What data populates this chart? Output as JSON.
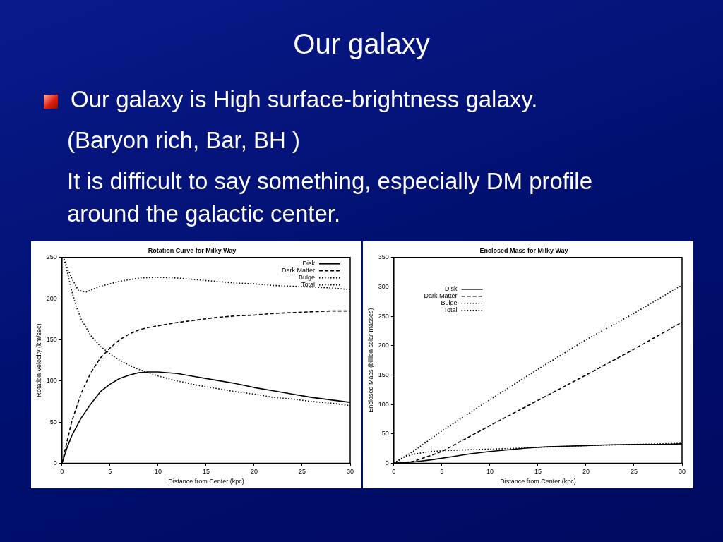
{
  "chart_data": [
    {
      "type": "other",
      "title": "Our galaxy",
      "annotations": [
        "Our galaxy is High surface-brightness galaxy.",
        "(Baryon rich, Bar, BH )",
        "It is difficult to say something, especially DM profile around the galactic center."
      ]
    },
    {
      "type": "line",
      "title": "Rotation Curve for Milky Way",
      "xlabel": "Distance from Center (kpc)",
      "ylabel": "Rotation Velocity (km/sec)",
      "xlim": [
        0,
        30
      ],
      "ylim": [
        0,
        250
      ],
      "xticks": [
        0,
        5,
        10,
        15,
        20,
        25,
        30
      ],
      "yticks": [
        0,
        50,
        100,
        150,
        200,
        250
      ],
      "grid": false,
      "legend": "top right",
      "marker": "none",
      "series": [
        {
          "name": "Disk",
          "color": "#000000",
          "line_style": "solid",
          "x": [
            0,
            0.5,
            1,
            2,
            3,
            4,
            5,
            6,
            7,
            8,
            9,
            10,
            12,
            14,
            16,
            18,
            20,
            22,
            24,
            26,
            28,
            30
          ],
          "values": [
            0,
            18,
            33,
            55,
            72,
            87,
            96,
            103,
            107,
            110,
            111,
            111,
            109,
            105,
            101,
            97,
            92,
            88,
            84,
            80,
            77,
            74
          ]
        },
        {
          "name": "Dark Matter",
          "color": "#000000",
          "line_style": "dashed",
          "x": [
            0,
            0.5,
            1,
            2,
            3,
            4,
            5,
            6,
            7,
            8,
            9,
            10,
            12,
            14,
            16,
            18,
            20,
            22,
            24,
            26,
            28,
            30
          ],
          "values": [
            0,
            25,
            50,
            85,
            110,
            128,
            140,
            150,
            157,
            162,
            165,
            167,
            171,
            174,
            177,
            179,
            180,
            182,
            183,
            184,
            185,
            185
          ]
        },
        {
          "name": "Bulge",
          "color": "#000000",
          "line_style": "dotted",
          "x": [
            0.2,
            0.5,
            1,
            1.5,
            2,
            3,
            4,
            5,
            6,
            7,
            8,
            9,
            10,
            12,
            14,
            16,
            18,
            20,
            22,
            24,
            26,
            28,
            30
          ],
          "values": [
            248,
            235,
            210,
            190,
            175,
            155,
            142,
            133,
            125,
            119,
            114,
            110,
            106,
            100,
            95,
            91,
            87,
            84,
            80,
            78,
            75,
            73,
            70
          ]
        },
        {
          "name": "Total",
          "color": "#000000",
          "line_style": "dotted",
          "x": [
            0.2,
            1,
            1.7,
            2.5,
            4,
            5,
            6,
            8,
            10,
            12,
            14,
            16,
            18,
            20,
            22,
            24,
            26,
            28,
            30
          ],
          "values": [
            248,
            225,
            210,
            208,
            215,
            218,
            221,
            225,
            226,
            225,
            223,
            221,
            219,
            218,
            216,
            215,
            214,
            213,
            211
          ]
        }
      ]
    },
    {
      "type": "line",
      "title": "Enclosed Mass for Milky Way",
      "xlabel": "Distance from Center (kpc)",
      "ylabel": "Enclosed Mass (billion solar masses)",
      "xlim": [
        0,
        30
      ],
      "ylim": [
        0,
        350
      ],
      "xticks": [
        0,
        5,
        10,
        15,
        20,
        25,
        30
      ],
      "yticks": [
        0,
        50,
        100,
        150,
        200,
        250,
        300,
        350
      ],
      "grid": false,
      "legend": "top left",
      "marker": "none",
      "series": [
        {
          "name": "Disk",
          "color": "#000000",
          "line_style": "solid",
          "x": [
            0,
            2,
            4,
            6,
            8,
            10,
            12,
            14,
            16,
            18,
            20,
            22,
            25,
            28,
            30
          ],
          "values": [
            0,
            2,
            6,
            11,
            16,
            20,
            23,
            26,
            28,
            29,
            30,
            31,
            32,
            32,
            33
          ]
        },
        {
          "name": "Dark Matter",
          "color": "#000000",
          "line_style": "dashed",
          "x": [
            0,
            2,
            4,
            5,
            10,
            15,
            20,
            25,
            30
          ],
          "values": [
            0,
            3,
            14,
            20,
            64,
            107,
            150,
            194,
            240
          ]
        },
        {
          "name": "Bulge",
          "color": "#000000",
          "line_style": "dotted",
          "x": [
            0,
            1,
            2,
            3,
            4,
            6,
            8,
            10,
            12,
            15,
            20,
            25,
            30
          ],
          "values": [
            0,
            10,
            15,
            18,
            20,
            22,
            23,
            24,
            25,
            27,
            30,
            32,
            34
          ]
        },
        {
          "name": "Total",
          "color": "#000000",
          "line_style": "dotted",
          "x": [
            0,
            2,
            5,
            10,
            15,
            20,
            25,
            30
          ],
          "values": [
            0,
            20,
            55,
            108,
            160,
            210,
            255,
            303
          ]
        }
      ]
    }
  ]
}
